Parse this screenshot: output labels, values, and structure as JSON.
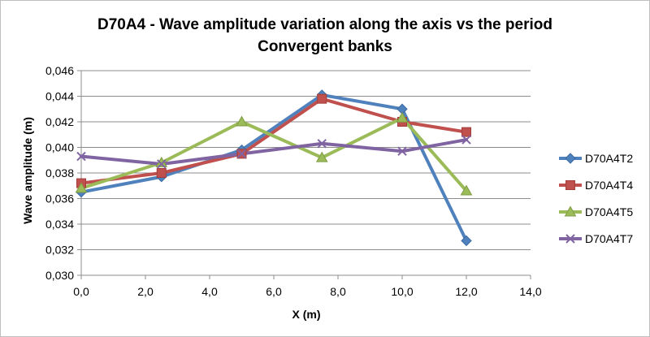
{
  "chart_data": {
    "type": "line",
    "title": "D70A4 - Wave amplitude variation along the axis vs the period",
    "subtitle": "Convergent banks",
    "xlabel": "X (m)",
    "ylabel": "Wave amplitude (m)",
    "xlim": [
      0,
      14
    ],
    "ylim": [
      0.03,
      0.046
    ],
    "x_ticks": [
      0,
      2,
      4,
      6,
      8,
      10,
      12,
      14
    ],
    "x_tick_labels": [
      "0,0",
      "2,0",
      "4,0",
      "6,0",
      "8,0",
      "10,0",
      "12,0",
      "14,0"
    ],
    "y_ticks": [
      0.03,
      0.032,
      0.034,
      0.036,
      0.038,
      0.04,
      0.042,
      0.044,
      0.046
    ],
    "y_tick_labels": [
      "0,030",
      "0,032",
      "0,034",
      "0,036",
      "0,038",
      "0,040",
      "0,042",
      "0,044",
      "0,046"
    ],
    "grid": true,
    "legend_position": "right",
    "x": [
      0,
      2.5,
      5,
      7.5,
      10,
      12
    ],
    "series": [
      {
        "name": "D70A4T2",
        "color": "#4f81bd",
        "marker": "diamond",
        "values": [
          0.0365,
          0.0377,
          0.0398,
          0.0441,
          0.043,
          0.0327
        ]
      },
      {
        "name": "D70A4T4",
        "color": "#c0504d",
        "marker": "square",
        "values": [
          0.0372,
          0.038,
          0.0395,
          0.0438,
          0.042,
          0.0412
        ]
      },
      {
        "name": "D70A4T5",
        "color": "#9bbb59",
        "marker": "triangle",
        "values": [
          0.0368,
          0.0388,
          0.042,
          0.0392,
          0.0423,
          0.0366
        ]
      },
      {
        "name": "D70A4T7",
        "color": "#8064a2",
        "marker": "x",
        "values": [
          0.0393,
          0.0387,
          0.0395,
          0.0403,
          0.0397,
          0.0406
        ]
      }
    ]
  }
}
